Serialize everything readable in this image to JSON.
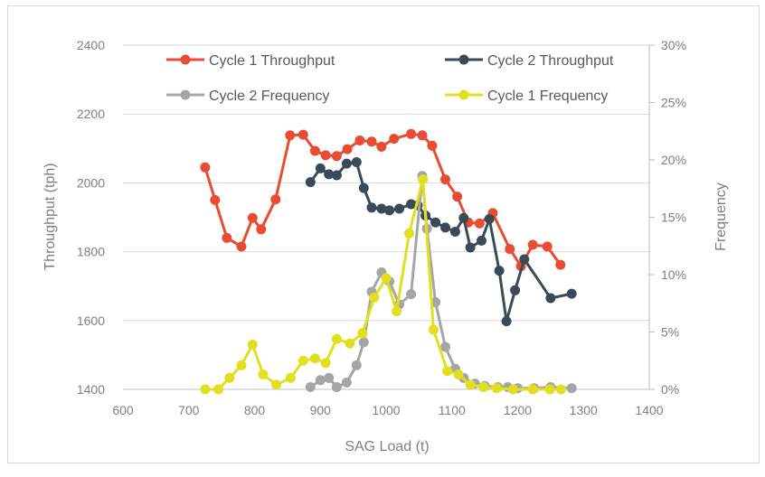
{
  "chart_data": {
    "type": "line",
    "title": "",
    "xlabel": "SAG Load (t)",
    "ylabel": "Throughput (tph)",
    "y2label": "Frequency",
    "xlim": [
      600,
      1400
    ],
    "ylim": [
      1400,
      2400
    ],
    "y2lim": [
      0,
      0.3
    ],
    "x_ticks": [
      "600",
      "700",
      "800",
      "900",
      "1000",
      "1100",
      "1200",
      "1300",
      "1400"
    ],
    "y_ticks": [
      "1400",
      "1600",
      "1800",
      "2000",
      "2200",
      "2400"
    ],
    "y2_ticks": [
      "0%",
      "5%",
      "10%",
      "15%",
      "20%",
      "25%",
      "30%"
    ],
    "grid": "horizontal major gridlines",
    "legend_placement": "top",
    "series": [
      {
        "name": "Cycle 1 Throughput",
        "axis": "left",
        "color": "#e84c33",
        "points": [
          [
            725,
            2045
          ],
          [
            740,
            1950
          ],
          [
            758,
            1840
          ],
          [
            780,
            1815
          ],
          [
            797,
            1898
          ],
          [
            810,
            1865
          ],
          [
            832,
            1952
          ],
          [
            854,
            2138
          ],
          [
            874,
            2140
          ],
          [
            892,
            2093
          ],
          [
            908,
            2080
          ],
          [
            925,
            2078
          ],
          [
            941,
            2098
          ],
          [
            960,
            2123
          ],
          [
            978,
            2120
          ],
          [
            993,
            2105
          ],
          [
            1012,
            2128
          ],
          [
            1038,
            2142
          ],
          [
            1055,
            2138
          ],
          [
            1070,
            2108
          ],
          [
            1090,
            2010
          ],
          [
            1108,
            1960
          ],
          [
            1125,
            1885
          ],
          [
            1142,
            1882
          ],
          [
            1162,
            1912
          ],
          [
            1188,
            1808
          ],
          [
            1205,
            1758
          ],
          [
            1223,
            1820
          ],
          [
            1245,
            1815
          ],
          [
            1265,
            1762
          ]
        ]
      },
      {
        "name": "Cycle 2 Throughput",
        "axis": "left",
        "color": "#3a4a59",
        "points": [
          [
            885,
            2002
          ],
          [
            900,
            2042
          ],
          [
            913,
            2025
          ],
          [
            925,
            2022
          ],
          [
            940,
            2056
          ],
          [
            955,
            2060
          ],
          [
            966,
            1985
          ],
          [
            978,
            1928
          ],
          [
            993,
            1925
          ],
          [
            1005,
            1920
          ],
          [
            1020,
            1925
          ],
          [
            1038,
            1938
          ],
          [
            1048,
            1935
          ],
          [
            1060,
            1905
          ],
          [
            1075,
            1885
          ],
          [
            1090,
            1870
          ],
          [
            1105,
            1858
          ],
          [
            1118,
            1898
          ],
          [
            1128,
            1812
          ],
          [
            1145,
            1832
          ],
          [
            1157,
            1895
          ],
          [
            1172,
            1745
          ],
          [
            1183,
            1598
          ],
          [
            1196,
            1688
          ],
          [
            1210,
            1778
          ],
          [
            1250,
            1665
          ],
          [
            1282,
            1678
          ]
        ]
      },
      {
        "name": "Cycle 2 Frequency",
        "axis": "right",
        "color": "#a5a5a5",
        "points": [
          [
            885,
            0.002
          ],
          [
            900,
            0.008
          ],
          [
            913,
            0.01
          ],
          [
            925,
            0.002
          ],
          [
            940,
            0.006
          ],
          [
            955,
            0.021
          ],
          [
            966,
            0.041
          ],
          [
            978,
            0.085
          ],
          [
            993,
            0.102
          ],
          [
            1005,
            0.094
          ],
          [
            1020,
            0.074
          ],
          [
            1038,
            0.083
          ],
          [
            1055,
            0.186
          ],
          [
            1062,
            0.14
          ],
          [
            1075,
            0.076
          ],
          [
            1090,
            0.037
          ],
          [
            1105,
            0.018
          ],
          [
            1118,
            0.01
          ],
          [
            1135,
            0.005
          ],
          [
            1150,
            0.003
          ],
          [
            1170,
            0.002
          ],
          [
            1185,
            0.002
          ],
          [
            1200,
            0.001
          ],
          [
            1225,
            0.001
          ],
          [
            1250,
            0.002
          ],
          [
            1282,
            0.001
          ]
        ]
      },
      {
        "name": "Cycle 1 Frequency",
        "axis": "right",
        "color": "#e0e021",
        "points": [
          [
            725,
            0.0
          ],
          [
            745,
            0.0
          ],
          [
            762,
            0.01
          ],
          [
            780,
            0.021
          ],
          [
            797,
            0.039
          ],
          [
            813,
            0.013
          ],
          [
            833,
            0.004
          ],
          [
            855,
            0.01
          ],
          [
            874,
            0.025
          ],
          [
            892,
            0.027
          ],
          [
            908,
            0.023
          ],
          [
            925,
            0.044
          ],
          [
            945,
            0.04
          ],
          [
            964,
            0.049
          ],
          [
            982,
            0.08
          ],
          [
            1000,
            0.097
          ],
          [
            1016,
            0.068
          ],
          [
            1035,
            0.136
          ],
          [
            1056,
            0.183
          ],
          [
            1072,
            0.052
          ],
          [
            1093,
            0.016
          ],
          [
            1110,
            0.013
          ],
          [
            1128,
            0.004
          ],
          [
            1148,
            0.002
          ],
          [
            1168,
            0.001
          ],
          [
            1193,
            0.0
          ],
          [
            1223,
            0.0
          ],
          [
            1249,
            0.0
          ],
          [
            1266,
            0.0
          ]
        ]
      }
    ]
  }
}
